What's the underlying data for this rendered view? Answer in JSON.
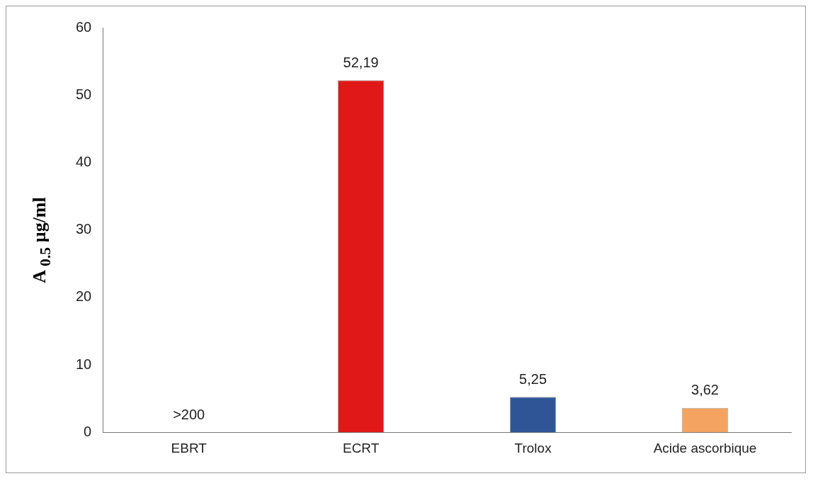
{
  "chart_data": {
    "type": "bar",
    "ylabel": "A $_{0.5}$ µg/ml",
    "categories": [
      "EBRT",
      "ECRT",
      "Trolox",
      "Acide ascorbique"
    ],
    "values": [
      null,
      52.19,
      5.25,
      3.62
    ],
    "colors": [
      "#c00000",
      "#e01818",
      "#2f5597",
      "#f4a460"
    ],
    "value_labels": [
      ">200",
      "52,19",
      "5,25",
      "3,62"
    ],
    "ylim": [
      0,
      60
    ],
    "yticks": [
      0,
      10,
      20,
      30,
      40,
      50,
      60
    ],
    "grid": false,
    "legend": false
  }
}
